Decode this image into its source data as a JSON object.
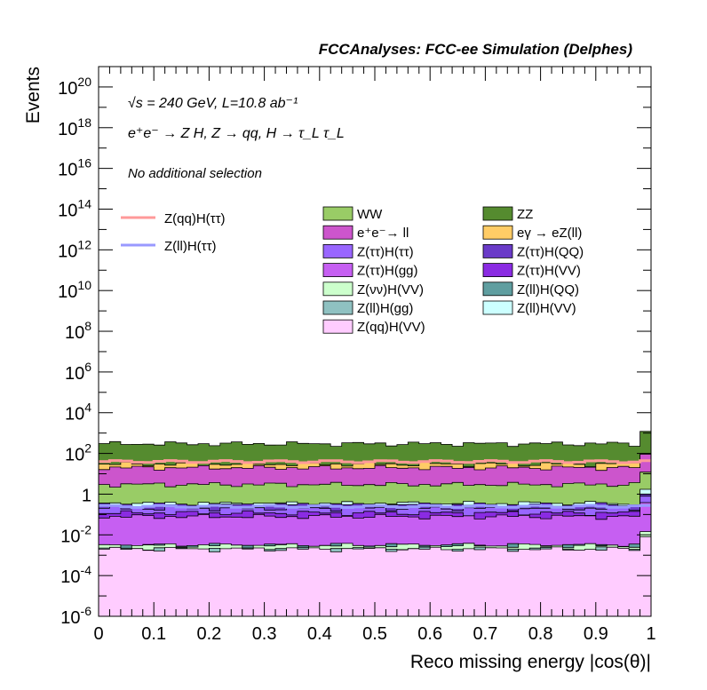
{
  "chart_data": {
    "type": "area",
    "header": "FCCAnalyses: FCC-ee Simulation (Delphes)",
    "annotations": {
      "energy_lumi": "√s = 240 GeV, L=10.8 ab⁻¹",
      "process": "e⁺e⁻ → Z H, Z → qq, H → τ_L τ_L",
      "selection": "No additional selection"
    },
    "xlabel": "Reco missing energy |cos(θ)|",
    "ylabel": "Events",
    "xlim": [
      0,
      1
    ],
    "ylim": [
      1e-06,
      1e+21
    ],
    "yscale": "log",
    "grid": false,
    "legend_placement": "top",
    "x_ticks": [
      "0",
      "0.1",
      "0.2",
      "0.3",
      "0.4",
      "0.5",
      "0.6",
      "0.7",
      "0.8",
      "0.9",
      "1"
    ],
    "y_ticks": [
      {
        "base": "10",
        "exp": "-6"
      },
      {
        "base": "10",
        "exp": "-4"
      },
      {
        "base": "10",
        "exp": "-2"
      },
      {
        "base": "1",
        "exp": ""
      },
      {
        "base": "10",
        "exp": "2"
      },
      {
        "base": "10",
        "exp": "4"
      },
      {
        "base": "10",
        "exp": "6"
      },
      {
        "base": "10",
        "exp": "8"
      },
      {
        "base": "10",
        "exp": "10"
      },
      {
        "base": "10",
        "exp": "12"
      },
      {
        "base": "10",
        "exp": "14"
      },
      {
        "base": "10",
        "exp": "16"
      },
      {
        "base": "10",
        "exp": "18"
      },
      {
        "base": "10",
        "exp": "20"
      }
    ],
    "stack_cumulative_values_approx": [
      {
        "name": "Z(qq)H(VV)",
        "color": "#ffccff",
        "level": 0.002
      },
      {
        "name": "Z(ll)H(gg)",
        "color": "#8fc1c1",
        "level": 0.002
      },
      {
        "name": "Z(νν)H(VV)",
        "color": "#ccffcc",
        "level": 0.003
      },
      {
        "name": "Z(ll)H(QQ)",
        "color": "#5f9ea0",
        "level": 0.003
      },
      {
        "name": "Z(ττ)H(gg)",
        "color": "#c65ff2",
        "level": 0.08
      },
      {
        "name": "Z(ττ)H(VV)",
        "color": "#8a2be2",
        "level": 0.12
      },
      {
        "name": "Z(ττ)H(ττ)",
        "color": "#9966ff",
        "level": 0.2
      },
      {
        "name": "Z(ττ)H(QQ)",
        "color": "#6a3bc8",
        "level": 0.3
      },
      {
        "name": "Z(ll)H(VV)",
        "color": "#ccffff",
        "level": 0.35
      },
      {
        "name": "WW",
        "color": "#99cc66",
        "level": 3
      },
      {
        "name": "e⁺e⁻→ ll",
        "color": "#cc55cc",
        "level": 20
      },
      {
        "name": "eγ → eZ(ll)",
        "color": "#ffcc66",
        "level": 30
      },
      {
        "name": "ZZ",
        "color": "#558b2f",
        "level": 300
      }
    ],
    "signal_lines_approx": [
      {
        "name": "Z(qq)H(ττ)",
        "color": "#ff9999",
        "value": 40
      },
      {
        "name": "Z(ll)H(ττ)",
        "color": "#9999ff",
        "value": 0.25
      }
    ],
    "legend": {
      "signals": [
        {
          "label": "Z(qq)H(ττ)",
          "color": "#ff9999"
        },
        {
          "label": "Z(ll)H(ττ)",
          "color": "#9999ff"
        }
      ],
      "backgrounds": [
        {
          "label": "WW",
          "color": "#99cc66"
        },
        {
          "label": "ZZ",
          "color": "#558b2f"
        },
        {
          "label": "e⁺e⁻→ ll",
          "color": "#cc55cc"
        },
        {
          "label": "eγ → eZ(ll)",
          "color": "#ffcc66"
        },
        {
          "label": "Z(ττ)H(ττ)",
          "color": "#9966ff"
        },
        {
          "label": "Z(ττ)H(QQ)",
          "color": "#6a3bc8"
        },
        {
          "label": "Z(ττ)H(gg)",
          "color": "#c65ff2"
        },
        {
          "label": "Z(ττ)H(VV)",
          "color": "#8a2be2"
        },
        {
          "label": "Z(νν)H(VV)",
          "color": "#ccffcc"
        },
        {
          "label": "Z(ll)H(QQ)",
          "color": "#5f9ea0"
        },
        {
          "label": "Z(ll)H(gg)",
          "color": "#8fc1c1"
        },
        {
          "label": "Z(ll)H(VV)",
          "color": "#ccffff"
        },
        {
          "label": "Z(qq)H(VV)",
          "color": "#ffccff"
        }
      ]
    }
  }
}
